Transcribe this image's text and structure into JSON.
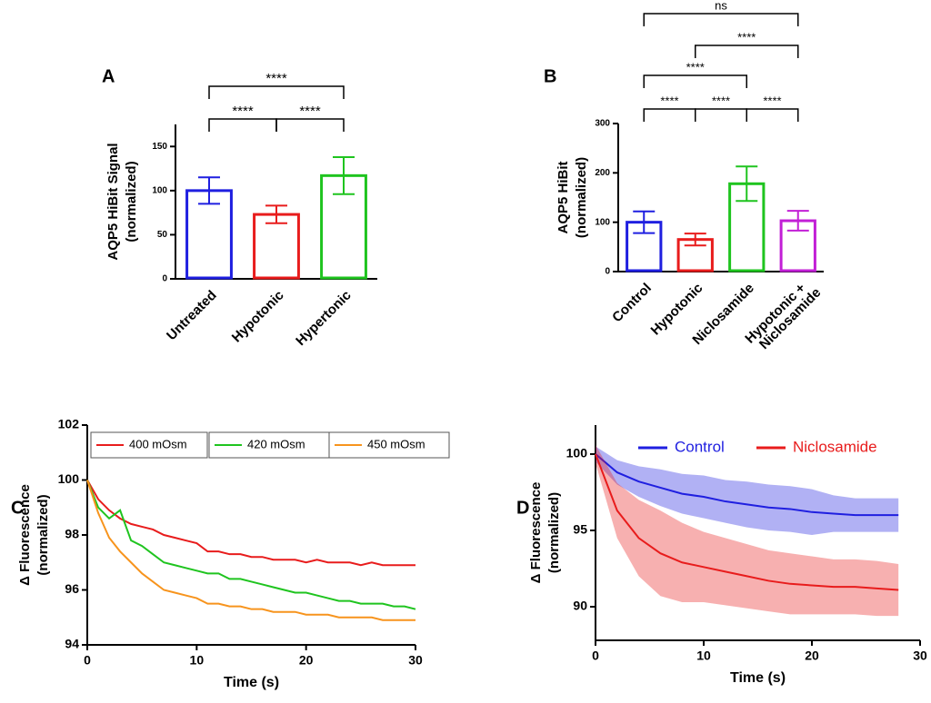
{
  "chart_data": [
    {
      "type": "bar",
      "label": "A",
      "ylabel": [
        "AQP5 HiBit Signal",
        "(normalized)"
      ],
      "categories": [
        "Untreated",
        "Hypotonic",
        "Hypertonic"
      ],
      "values": [
        100,
        73,
        117
      ],
      "errors": [
        15,
        10,
        21
      ],
      "colors": [
        "#1f1fe0",
        "#e81c1c",
        "#1fc41f"
      ],
      "ylim": [
        0,
        175
      ],
      "yticks": [
        0,
        50,
        100,
        150
      ],
      "annotations": [
        "****",
        "****",
        "****"
      ]
    },
    {
      "type": "bar",
      "label": "B",
      "ylabel": [
        "AQP5 HiBit",
        "(normalized)"
      ],
      "categories": [
        "Control",
        "Hypotonic",
        "Niclosamide",
        [
          "Hypotonic +",
          "Niclosamide"
        ]
      ],
      "values": [
        100,
        65,
        178,
        103
      ],
      "errors": [
        22,
        12,
        35,
        20
      ],
      "colors": [
        "#1f1fe0",
        "#e81c1c",
        "#1fc41f",
        "#c21fd6"
      ],
      "ylim": [
        0,
        300
      ],
      "yticks": [
        0,
        100,
        200,
        300
      ],
      "annotations": [
        "ns",
        "****",
        "****",
        "****",
        "****",
        "****"
      ]
    },
    {
      "type": "line",
      "label": "C",
      "ylabel": [
        "Δ Fluorescence",
        "(normalized)"
      ],
      "xlabel": "Time (s)",
      "x": [
        0,
        1,
        2,
        3,
        4,
        5,
        6,
        7,
        8,
        9,
        10,
        11,
        12,
        13,
        14,
        15,
        16,
        17,
        18,
        19,
        20,
        21,
        22,
        23,
        24,
        25,
        26,
        27,
        28,
        29,
        30
      ],
      "series": [
        {
          "name": "400 mOsm",
          "color": "#e81c1c",
          "values": [
            100,
            99.3,
            98.9,
            98.6,
            98.4,
            98.3,
            98.2,
            98.0,
            97.9,
            97.8,
            97.7,
            97.4,
            97.4,
            97.3,
            97.3,
            97.2,
            97.2,
            97.1,
            97.1,
            97.1,
            97.0,
            97.1,
            97.0,
            97.0,
            97.0,
            96.9,
            97.0,
            96.9,
            96.9,
            96.9,
            96.9
          ]
        },
        {
          "name": "420 mOsm",
          "color": "#1fc41f",
          "values": [
            100,
            99.0,
            98.6,
            98.9,
            97.8,
            97.6,
            97.3,
            97.0,
            96.9,
            96.8,
            96.7,
            96.6,
            96.6,
            96.4,
            96.4,
            96.3,
            96.2,
            96.1,
            96.0,
            95.9,
            95.9,
            95.8,
            95.7,
            95.6,
            95.6,
            95.5,
            95.5,
            95.5,
            95.4,
            95.4,
            95.3
          ]
        },
        {
          "name": "450 mOsm",
          "color": "#f7941d",
          "values": [
            100,
            98.8,
            97.9,
            97.4,
            97.0,
            96.6,
            96.3,
            96.0,
            95.9,
            95.8,
            95.7,
            95.5,
            95.5,
            95.4,
            95.4,
            95.3,
            95.3,
            95.2,
            95.2,
            95.2,
            95.1,
            95.1,
            95.1,
            95.0,
            95.0,
            95.0,
            95.0,
            94.9,
            94.9,
            94.9,
            94.9
          ]
        }
      ],
      "xlim": [
        0,
        30
      ],
      "xticks": [
        0,
        10,
        20,
        30
      ],
      "ylim": [
        94,
        102
      ],
      "yticks": [
        94,
        96,
        98,
        100,
        102
      ]
    },
    {
      "type": "line",
      "label": "D",
      "ylabel": [
        "Δ Fluorescence",
        "(normalized)"
      ],
      "xlabel": "Time  (s)",
      "x": [
        0,
        2,
        4,
        6,
        8,
        10,
        12,
        14,
        16,
        18,
        20,
        22,
        24,
        26,
        28
      ],
      "series": [
        {
          "name": "Control",
          "color": "#1f1fe0",
          "values": [
            100,
            98.8,
            98.2,
            97.8,
            97.4,
            97.2,
            96.9,
            96.7,
            96.5,
            96.4,
            96.2,
            96.1,
            96.0,
            96.0,
            96.0
          ],
          "errors": [
            0.5,
            0.8,
            1.0,
            1.2,
            1.3,
            1.4,
            1.4,
            1.5,
            1.5,
            1.5,
            1.5,
            1.2,
            1.1,
            1.1,
            1.1
          ]
        },
        {
          "name": "Niclosamide",
          "color": "#e81c1c",
          "values": [
            100,
            96.3,
            94.5,
            93.5,
            92.9,
            92.6,
            92.3,
            92.0,
            91.7,
            91.5,
            91.4,
            91.3,
            91.3,
            91.2,
            91.1
          ],
          "errors": [
            0.6,
            1.8,
            2.5,
            2.8,
            2.6,
            2.3,
            2.2,
            2.1,
            2.0,
            2.0,
            1.9,
            1.8,
            1.8,
            1.8,
            1.7
          ]
        }
      ],
      "xlim": [
        0,
        30
      ],
      "xticks": [
        0,
        10,
        20,
        30
      ],
      "ylim": [
        87.8,
        101.9
      ],
      "yticks": [
        90,
        95,
        100
      ]
    }
  ]
}
